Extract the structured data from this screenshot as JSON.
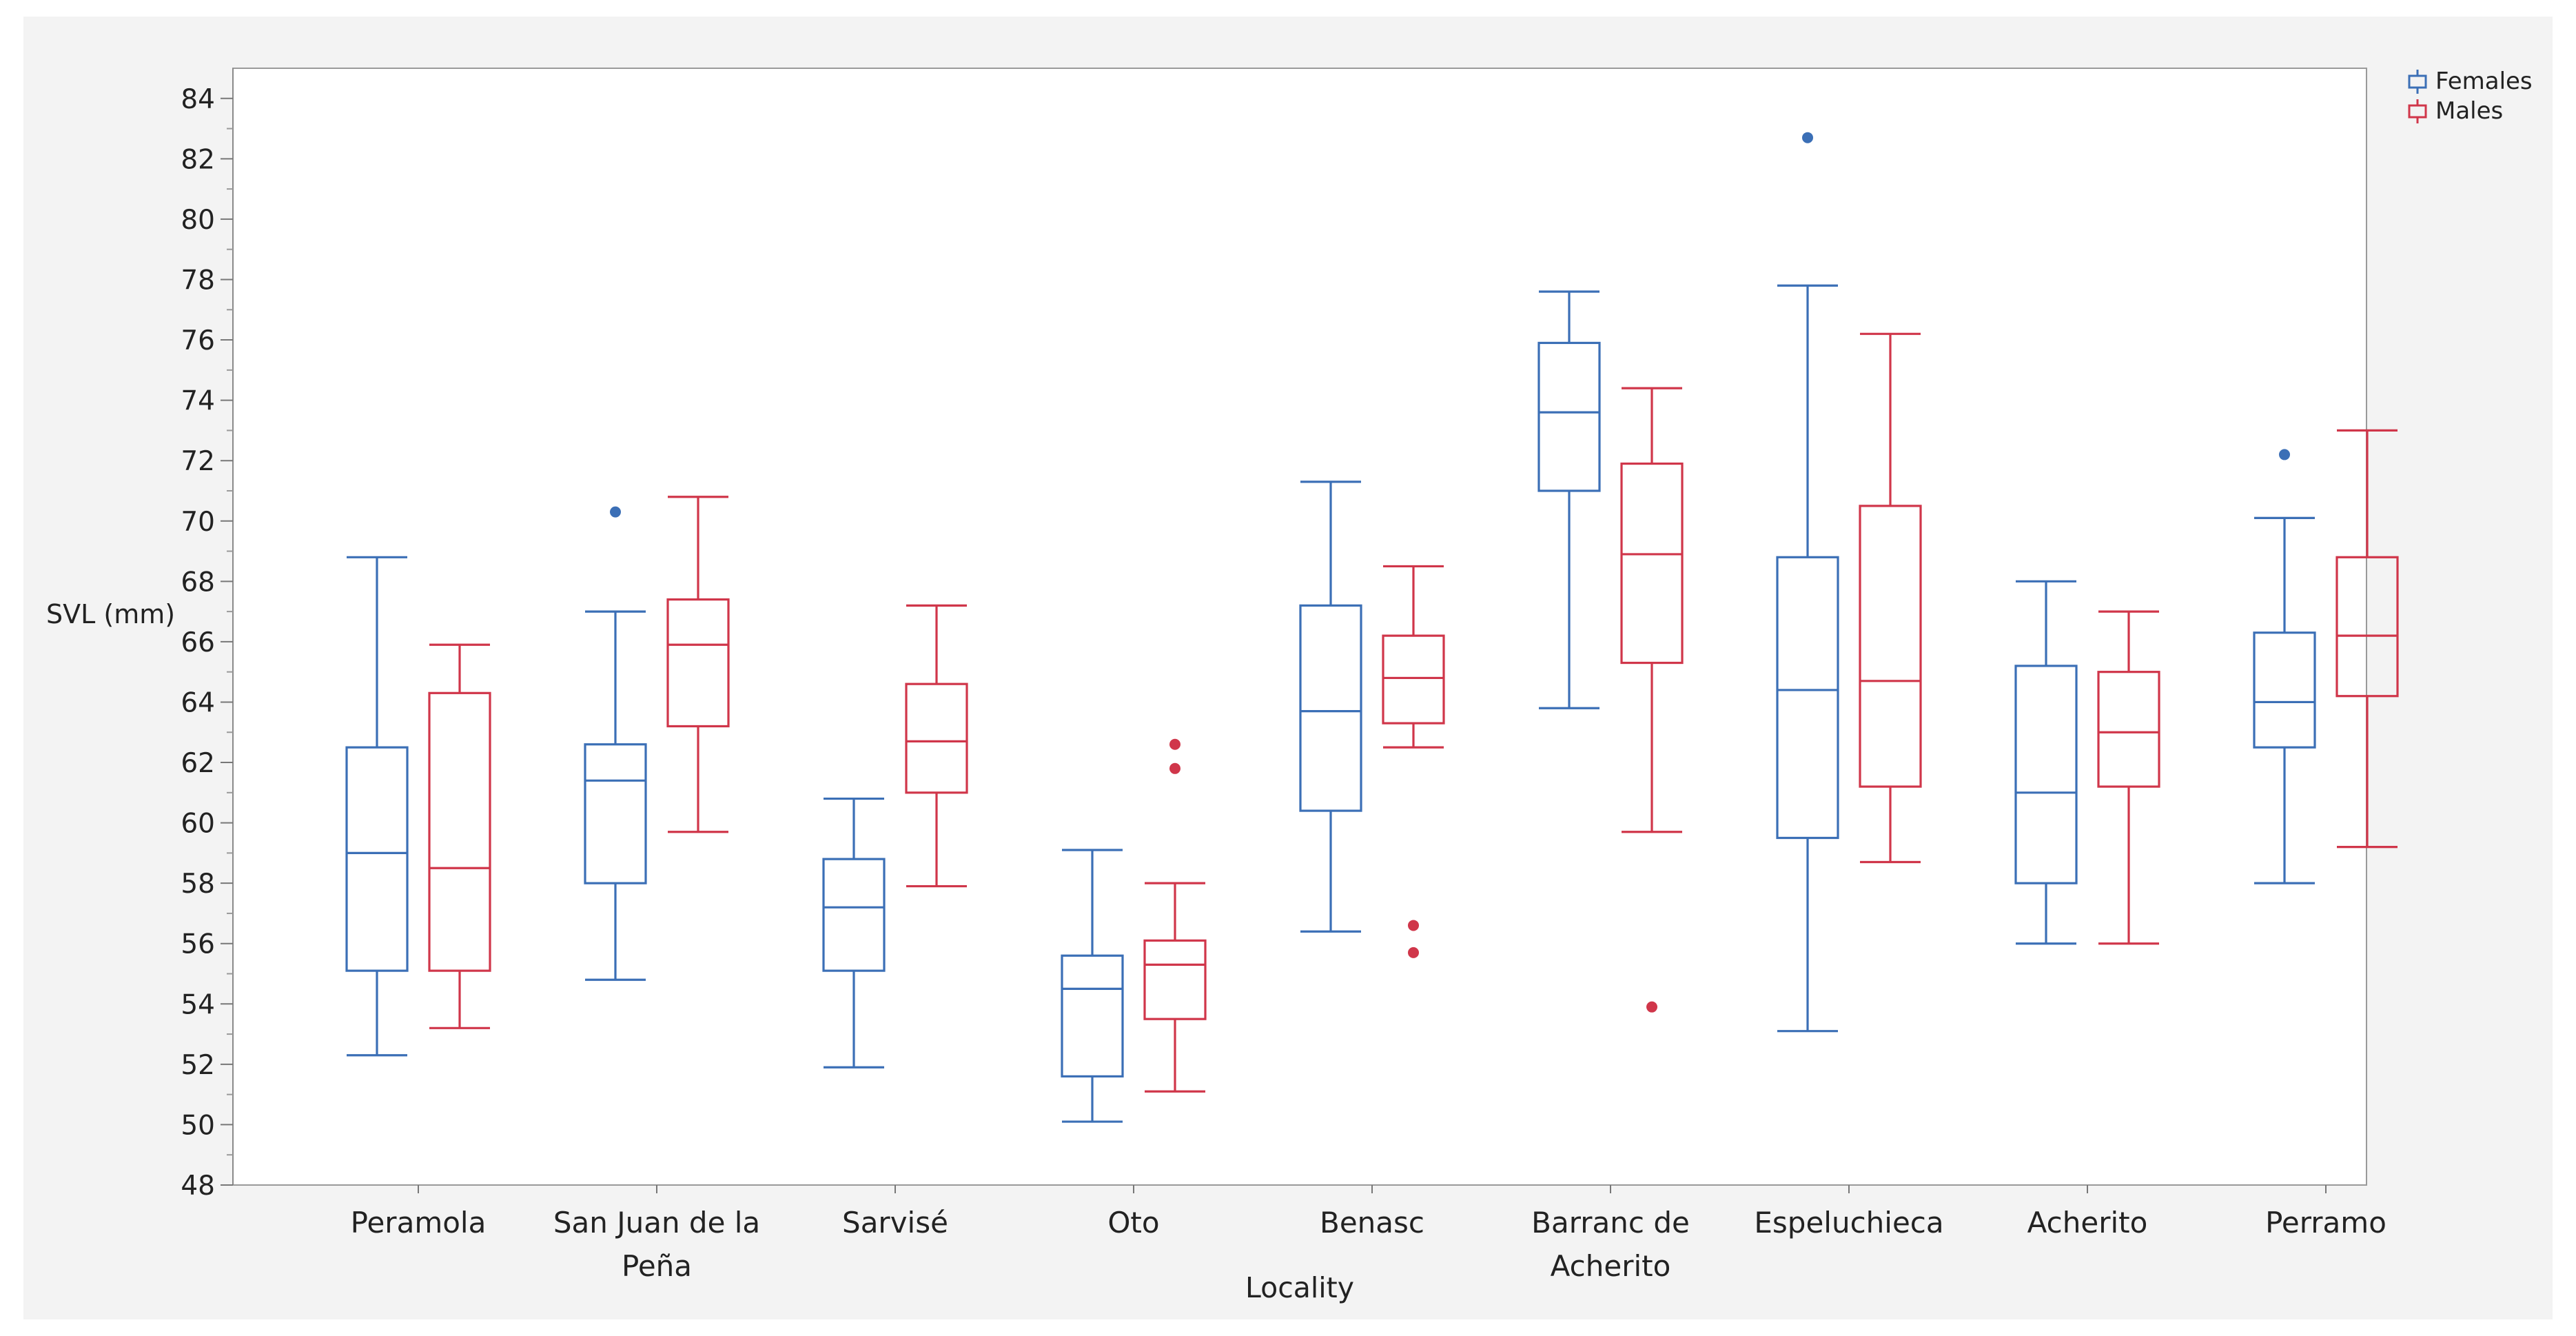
{
  "chart_data": {
    "type": "boxplot",
    "title": "",
    "xlabel": "Locality",
    "ylabel": "SVL (mm)",
    "ylim": [
      48,
      85
    ],
    "yticks": [
      48,
      50,
      52,
      54,
      56,
      58,
      60,
      62,
      64,
      66,
      68,
      70,
      72,
      74,
      76,
      78,
      80,
      82,
      84
    ],
    "ytick_labels": [
      "48",
      "50",
      "52",
      "54",
      "56",
      "58",
      "60",
      "62",
      "64",
      "66",
      "68",
      "70",
      "72",
      "74",
      "76",
      "78",
      "80",
      "82",
      "84"
    ],
    "categories": [
      [
        "Peramola"
      ],
      [
        "San Juan de la",
        "Peña"
      ],
      [
        "Sarvisé"
      ],
      [
        "Oto"
      ],
      [
        "Benasc"
      ],
      [
        "Barranc de",
        "Acherito"
      ],
      [
        "Espeluchieca"
      ],
      [
        "Acherito"
      ],
      [
        "Perramo"
      ]
    ],
    "legend": {
      "position": "top-right",
      "entries": [
        {
          "name": "Females",
          "color": "#3b6fb6"
        },
        {
          "name": "Males",
          "color": "#d0364a"
        }
      ]
    },
    "series": [
      {
        "name": "Females",
        "color": "#3b6fb6",
        "boxes": [
          {
            "min": 52.3,
            "q1": 55.1,
            "median": 59.0,
            "q3": 62.5,
            "max": 68.8,
            "outliers": []
          },
          {
            "min": 54.8,
            "q1": 58.0,
            "median": 61.4,
            "q3": 62.6,
            "max": 67.0,
            "outliers": [
              70.3
            ]
          },
          {
            "min": 51.9,
            "q1": 55.1,
            "median": 57.2,
            "q3": 58.8,
            "max": 60.8,
            "outliers": []
          },
          {
            "min": 50.1,
            "q1": 51.6,
            "median": 54.5,
            "q3": 55.6,
            "max": 59.1,
            "outliers": []
          },
          {
            "min": 56.4,
            "q1": 60.4,
            "median": 63.7,
            "q3": 67.2,
            "max": 71.3,
            "outliers": []
          },
          {
            "min": 63.8,
            "q1": 71.0,
            "median": 73.6,
            "q3": 75.9,
            "max": 77.6,
            "outliers": []
          },
          {
            "min": 53.1,
            "q1": 59.5,
            "median": 64.4,
            "q3": 68.8,
            "max": 77.8,
            "outliers": [
              82.7
            ]
          },
          {
            "min": 56.0,
            "q1": 58.0,
            "median": 61.0,
            "q3": 65.2,
            "max": 68.0,
            "outliers": []
          },
          {
            "min": 58.0,
            "q1": 62.5,
            "median": 64.0,
            "q3": 66.3,
            "max": 70.1,
            "outliers": [
              72.2
            ]
          }
        ]
      },
      {
        "name": "Males",
        "color": "#d0364a",
        "boxes": [
          {
            "min": 53.2,
            "q1": 55.1,
            "median": 58.5,
            "q3": 64.3,
            "max": 65.9,
            "outliers": []
          },
          {
            "min": 59.7,
            "q1": 63.2,
            "median": 65.9,
            "q3": 67.4,
            "max": 70.8,
            "outliers": []
          },
          {
            "min": 57.9,
            "q1": 61.0,
            "median": 62.7,
            "q3": 64.6,
            "max": 67.2,
            "outliers": []
          },
          {
            "min": 51.1,
            "q1": 53.5,
            "median": 55.3,
            "q3": 56.1,
            "max": 58.0,
            "outliers": [
              61.8,
              62.6
            ]
          },
          {
            "min": 62.5,
            "q1": 63.3,
            "median": 64.8,
            "q3": 66.2,
            "max": 68.5,
            "outliers": [
              55.7,
              56.6
            ]
          },
          {
            "min": 59.7,
            "q1": 65.3,
            "median": 68.9,
            "q3": 71.9,
            "max": 74.4,
            "outliers": [
              53.9
            ]
          },
          {
            "min": 58.7,
            "q1": 61.2,
            "median": 64.7,
            "q3": 70.5,
            "max": 76.2,
            "outliers": []
          },
          {
            "min": 56.0,
            "q1": 61.2,
            "median": 63.0,
            "q3": 65.0,
            "max": 67.0,
            "outliers": []
          },
          {
            "min": 59.2,
            "q1": 64.2,
            "median": 66.2,
            "q3": 68.8,
            "max": 73.0,
            "outliers": []
          }
        ]
      }
    ]
  }
}
